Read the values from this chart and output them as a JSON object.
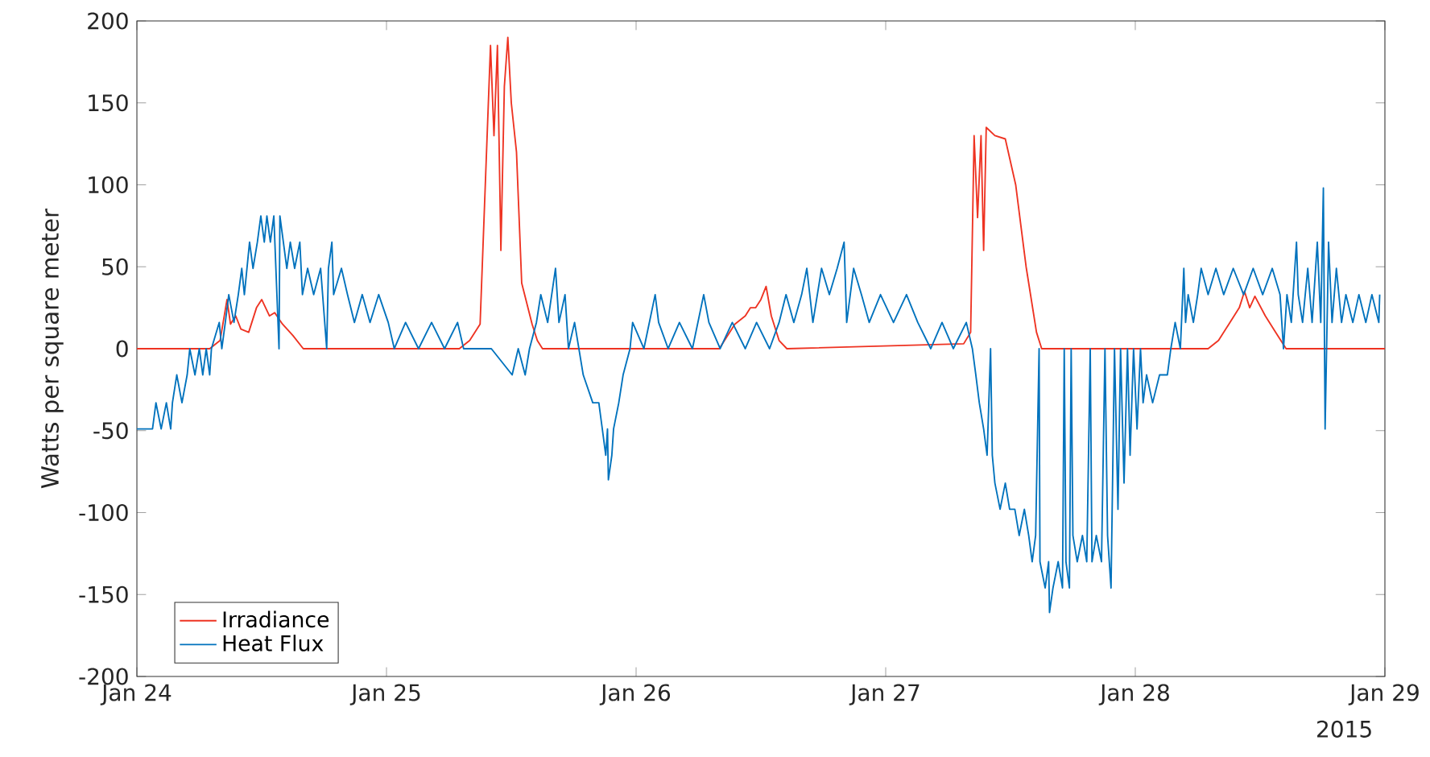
{
  "chart_data": {
    "type": "line",
    "ylabel": "Watts per square meter",
    "xlim": [
      "2015-01-24",
      "2015-01-29"
    ],
    "ylim": [
      -200,
      200
    ],
    "xticks": [
      {
        "value": "2015-01-24",
        "label": "Jan 24"
      },
      {
        "value": "2015-01-25",
        "label": "Jan 25"
      },
      {
        "value": "2015-01-26",
        "label": "Jan 26"
      },
      {
        "value": "2015-01-27",
        "label": "Jan 27"
      },
      {
        "value": "2015-01-28",
        "label": "Jan 28"
      },
      {
        "value": "2015-01-29",
        "label": "Jan 29"
      }
    ],
    "yticks": [
      -200,
      -150,
      -100,
      -50,
      0,
      50,
      100,
      150,
      200
    ],
    "grid": false,
    "legend": "bottom left",
    "marker": "none",
    "line_style": "solid",
    "annotations": [
      "2015"
    ],
    "series": [
      {
        "name": "Irradiance",
        "color": "#ee3322",
        "x": [
          "2015-01-24T00:00",
          "2015-01-24T07:00",
          "2015-01-24T08:00",
          "2015-01-24T08:40",
          "2015-01-24T09:00",
          "2015-01-24T09:30",
          "2015-01-24T10:00",
          "2015-01-24T10:45",
          "2015-01-24T11:30",
          "2015-01-24T12:00",
          "2015-01-24T12:45",
          "2015-01-24T13:15",
          "2015-01-24T14:00",
          "2015-01-24T15:00",
          "2015-01-24T16:00",
          "2015-01-25T07:00",
          "2015-01-25T08:00",
          "2015-01-25T09:00",
          "2015-01-25T09:30",
          "2015-01-25T10:00",
          "2015-01-25T10:20",
          "2015-01-25T10:40",
          "2015-01-25T11:00",
          "2015-01-25T11:20",
          "2015-01-25T11:40",
          "2015-01-25T12:00",
          "2015-01-25T12:30",
          "2015-01-25T13:00",
          "2015-01-25T14:00",
          "2015-01-25T14:30",
          "2015-01-25T15:00",
          "2015-01-26T08:00",
          "2015-01-26T08:30",
          "2015-01-26T09:30",
          "2015-01-26T10:30",
          "2015-01-26T11:00",
          "2015-01-26T11:30",
          "2015-01-26T12:00",
          "2015-01-26T12:30",
          "2015-01-26T13:00",
          "2015-01-26T13:45",
          "2015-01-26T14:30",
          "2015-01-27T07:30",
          "2015-01-27T08:10",
          "2015-01-27T08:30",
          "2015-01-27T08:50",
          "2015-01-27T09:10",
          "2015-01-27T09:25",
          "2015-01-27T09:40",
          "2015-01-27T10:30",
          "2015-01-27T11:30",
          "2015-01-27T12:30",
          "2015-01-27T13:30",
          "2015-01-27T14:30",
          "2015-01-27T15:00",
          "2015-01-28T07:00",
          "2015-01-28T08:00",
          "2015-01-28T09:00",
          "2015-01-28T10:00",
          "2015-01-28T10:30",
          "2015-01-28T11:00",
          "2015-01-28T11:30",
          "2015-01-28T12:30",
          "2015-01-28T13:30",
          "2015-01-28T14:30",
          "2015-01-29T00:00"
        ],
        "values": [
          0,
          0,
          5,
          30,
          15,
          20,
          12,
          10,
          25,
          30,
          20,
          22,
          15,
          8,
          0,
          0,
          5,
          15,
          100,
          185,
          130,
          185,
          60,
          160,
          190,
          150,
          120,
          40,
          15,
          5,
          0,
          0,
          5,
          15,
          20,
          25,
          25,
          30,
          38,
          20,
          5,
          0,
          3,
          10,
          130,
          80,
          130,
          60,
          135,
          130,
          128,
          100,
          50,
          10,
          0,
          0,
          5,
          15,
          25,
          35,
          25,
          32,
          20,
          10,
          0,
          0
        ]
      },
      {
        "name": "Heat Flux",
        "color": "#0072bd",
        "x": [
          "2015-01-24T00:00",
          "2015-01-24T01:30",
          "2015-01-24T01:50",
          "2015-01-24T02:20",
          "2015-01-24T02:50",
          "2015-01-24T03:15",
          "2015-01-24T03:25",
          "2015-01-24T03:50",
          "2015-01-24T04:20",
          "2015-01-24T04:50",
          "2015-01-24T05:05",
          "2015-01-24T05:35",
          "2015-01-24T06:00",
          "2015-01-24T06:20",
          "2015-01-24T06:40",
          "2015-01-24T07:00",
          "2015-01-24T07:10",
          "2015-01-24T07:55",
          "2015-01-24T08:10",
          "2015-01-24T08:30",
          "2015-01-24T08:50",
          "2015-01-24T09:20",
          "2015-01-24T09:45",
          "2015-01-24T10:05",
          "2015-01-24T10:20",
          "2015-01-24T10:50",
          "2015-01-24T11:10",
          "2015-01-24T11:35",
          "2015-01-24T11:55",
          "2015-01-24T12:15",
          "2015-01-24T12:30",
          "2015-01-24T12:50",
          "2015-01-24T13:10",
          "2015-01-24T13:40",
          "2015-01-24T13:45",
          "2015-01-24T14:05",
          "2015-01-24T14:25",
          "2015-01-24T14:45",
          "2015-01-24T15:10",
          "2015-01-24T15:40",
          "2015-01-24T15:55",
          "2015-01-24T16:25",
          "2015-01-24T17:00",
          "2015-01-24T17:40",
          "2015-01-24T18:15",
          "2015-01-24T18:25",
          "2015-01-24T18:45",
          "2015-01-24T18:55",
          "2015-01-24T19:40",
          "2015-01-24T20:15",
          "2015-01-24T20:55",
          "2015-01-24T21:40",
          "2015-01-24T22:25",
          "2015-01-24T23:15",
          "2015-01-25T00:10",
          "2015-01-25T00:45",
          "2015-01-25T01:50",
          "2015-01-25T03:05",
          "2015-01-25T04:20",
          "2015-01-25T05:35",
          "2015-01-25T06:50",
          "2015-01-25T07:25",
          "2015-01-25T09:15",
          "2015-01-25T10:05",
          "2015-01-25T12:05",
          "2015-01-25T12:40",
          "2015-01-25T13:20",
          "2015-01-25T13:45",
          "2015-01-25T14:25",
          "2015-01-25T14:50",
          "2015-01-25T15:30",
          "2015-01-25T16:15",
          "2015-01-25T16:35",
          "2015-01-25T17:10",
          "2015-01-25T17:30",
          "2015-01-25T18:05",
          "2015-01-25T18:55",
          "2015-01-25T19:50",
          "2015-01-25T20:25",
          "2015-01-25T20:45",
          "2015-01-25T21:05",
          "2015-01-25T21:15",
          "2015-01-25T21:20",
          "2015-01-25T21:40",
          "2015-01-25T21:50",
          "2015-01-25T22:20",
          "2015-01-25T22:45",
          "2015-01-25T23:25",
          "2015-01-25T23:40",
          "2015-01-26T00:45",
          "2015-01-26T01:50",
          "2015-01-26T02:10",
          "2015-01-26T03:05",
          "2015-01-26T04:10",
          "2015-01-26T05:25",
          "2015-01-26T06:30",
          "2015-01-26T07:00",
          "2015-01-26T08:05",
          "2015-01-26T09:15",
          "2015-01-26T10:30",
          "2015-01-26T11:35",
          "2015-01-26T12:50",
          "2015-01-26T13:45",
          "2015-01-26T14:25",
          "2015-01-26T15:10",
          "2015-01-26T15:55",
          "2015-01-26T16:25",
          "2015-01-26T17:00",
          "2015-01-26T17:50",
          "2015-01-26T18:35",
          "2015-01-26T19:20",
          "2015-01-26T20:00",
          "2015-01-26T20:15",
          "2015-01-26T20:55",
          "2015-01-26T21:40",
          "2015-01-26T22:25",
          "2015-01-26T23:30",
          "2015-01-27T00:45",
          "2015-01-27T02:00",
          "2015-01-27T03:05",
          "2015-01-27T04:20",
          "2015-01-27T05:25",
          "2015-01-27T06:30",
          "2015-01-27T07:45",
          "2015-01-27T08:20",
          "2015-01-27T08:40",
          "2015-01-27T09:00",
          "2015-01-27T09:25",
          "2015-01-27T09:45",
          "2015-01-27T10:05",
          "2015-01-27T10:15",
          "2015-01-27T10:30",
          "2015-01-27T11:00",
          "2015-01-27T11:30",
          "2015-01-27T11:55",
          "2015-01-27T12:25",
          "2015-01-27T12:50",
          "2015-01-27T13:20",
          "2015-01-27T13:45",
          "2015-01-27T14:05",
          "2015-01-27T14:25",
          "2015-01-27T14:45",
          "2015-01-27T14:50",
          "2015-01-27T15:20",
          "2015-01-27T15:40",
          "2015-01-27T15:45",
          "2015-01-27T16:05",
          "2015-01-27T16:35",
          "2015-01-27T17:00",
          "2015-01-27T17:10",
          "2015-01-27T17:20",
          "2015-01-27T17:40",
          "2015-01-27T17:50",
          "2015-01-27T18:00",
          "2015-01-27T18:25",
          "2015-01-27T18:55",
          "2015-01-27T19:20",
          "2015-01-27T19:40",
          "2015-01-27T19:50",
          "2015-01-27T20:15",
          "2015-01-27T20:45",
          "2015-01-27T21:05",
          "2015-01-27T21:20",
          "2015-01-27T21:40",
          "2015-01-27T22:00",
          "2015-01-27T22:20",
          "2015-01-27T22:35",
          "2015-01-27T22:55",
          "2015-01-27T23:15",
          "2015-01-27T23:30",
          "2015-01-27T23:50",
          "2015-01-28T00:10",
          "2015-01-28T00:30",
          "2015-01-28T00:45",
          "2015-01-28T01:05",
          "2015-01-28T01:40",
          "2015-01-28T02:20",
          "2015-01-28T03:05",
          "2015-01-28T03:25",
          "2015-01-28T03:50",
          "2015-01-28T04:20",
          "2015-01-28T04:40",
          "2015-01-28T04:50",
          "2015-01-28T05:05",
          "2015-01-28T05:35",
          "2015-01-28T06:00",
          "2015-01-28T06:20",
          "2015-01-28T07:00",
          "2015-01-28T07:45",
          "2015-01-28T08:30",
          "2015-01-28T09:25",
          "2015-01-28T10:25",
          "2015-01-28T11:20",
          "2015-01-28T12:15",
          "2015-01-28T13:10",
          "2015-01-28T13:55",
          "2015-01-28T14:15",
          "2015-01-28T14:35",
          "2015-01-28T15:00",
          "2015-01-28T15:30",
          "2015-01-28T15:40",
          "2015-01-28T16:05",
          "2015-01-28T16:35",
          "2015-01-28T17:00",
          "2015-01-28T17:30",
          "2015-01-28T17:50",
          "2015-01-28T18:05",
          "2015-01-28T18:15",
          "2015-01-28T18:35",
          "2015-01-28T18:55",
          "2015-01-28T19:20",
          "2015-01-28T19:50",
          "2015-01-28T20:15",
          "2015-01-28T20:55",
          "2015-01-28T21:30",
          "2015-01-28T22:10",
          "2015-01-28T22:45",
          "2015-01-28T23:25",
          "2015-01-28T23:30"
        ],
        "values": [
          -49,
          -49,
          -33,
          -49,
          -33,
          -49,
          -33,
          -16,
          -33,
          -16,
          0,
          -16,
          0,
          -16,
          0,
          -16,
          0,
          16,
          0,
          16,
          33,
          16,
          33,
          49,
          33,
          65,
          49,
          65,
          81,
          65,
          81,
          65,
          81,
          0,
          81,
          65,
          49,
          65,
          49,
          65,
          33,
          49,
          33,
          49,
          0,
          49,
          65,
          33,
          49,
          33,
          16,
          33,
          16,
          33,
          16,
          0,
          16,
          0,
          16,
          0,
          16,
          0,
          0,
          0,
          -16,
          0,
          -16,
          0,
          16,
          33,
          16,
          49,
          16,
          33,
          0,
          16,
          -16,
          -33,
          -33,
          -49,
          -65,
          -49,
          -80,
          -65,
          -49,
          -33,
          -16,
          0,
          16,
          0,
          33,
          16,
          0,
          16,
          0,
          33,
          16,
          0,
          16,
          0,
          16,
          0,
          16,
          33,
          16,
          33,
          49,
          16,
          49,
          33,
          49,
          65,
          16,
          49,
          33,
          16,
          33,
          16,
          33,
          16,
          0,
          16,
          0,
          16,
          0,
          -16,
          -33,
          -49,
          -65,
          0,
          -65,
          -82,
          -98,
          -82,
          -98,
          -98,
          -114,
          -98,
          -114,
          -130,
          -114,
          0,
          -130,
          -146,
          -130,
          -161,
          -146,
          -130,
          -146,
          0,
          -130,
          -146,
          0,
          -114,
          -130,
          -114,
          -130,
          0,
          -130,
          -114,
          -130,
          0,
          -114,
          -146,
          0,
          -98,
          0,
          -82,
          0,
          -65,
          0,
          -49,
          0,
          -33,
          -16,
          -33,
          -16,
          -16,
          0,
          16,
          0,
          49,
          16,
          33,
          16,
          33,
          49,
          33,
          49,
          33,
          49,
          33,
          49,
          33,
          49,
          33,
          0,
          33,
          16,
          65,
          33,
          16,
          49,
          16,
          65,
          16,
          98,
          -49,
          65,
          16,
          49,
          16,
          33,
          16,
          33,
          16,
          33,
          16,
          33
        ]
      }
    ]
  }
}
